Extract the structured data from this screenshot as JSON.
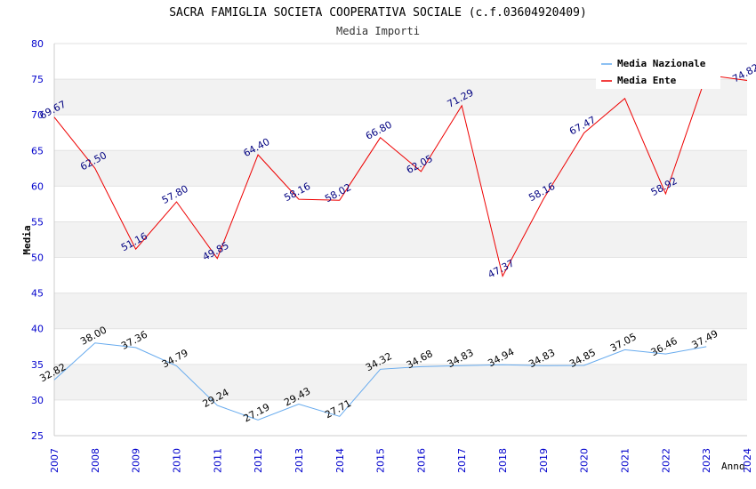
{
  "chart_data": {
    "type": "line",
    "title": "SACRA FAMIGLIA SOCIETA COOPERATIVA SOCIALE (c.f.03604920409)",
    "subtitle": "Media Importi",
    "xlabel": "Anno",
    "ylabel": "Media",
    "ylim": [
      25,
      80
    ],
    "yticks": [
      25,
      30,
      35,
      40,
      45,
      50,
      55,
      60,
      65,
      70,
      75,
      80
    ],
    "x": [
      "2007",
      "2008",
      "2009",
      "2010",
      "2011",
      "2012",
      "2013",
      "2014",
      "2015",
      "2016",
      "2017",
      "2018",
      "2019",
      "2020",
      "2021",
      "2022",
      "2023",
      "2024"
    ],
    "legend_position": "top-right",
    "series": [
      {
        "name": "Media Nazionale",
        "color": "#66aaee",
        "label_color": "#000000",
        "values": [
          32.82,
          38.0,
          37.36,
          34.79,
          29.24,
          27.19,
          29.43,
          27.71,
          34.32,
          34.68,
          34.83,
          34.94,
          34.83,
          34.85,
          37.05,
          36.46,
          37.49,
          null
        ],
        "labels": [
          "32.82",
          "38.00",
          "37.36",
          "34.79",
          "29.24",
          "27.19",
          "29.43",
          "27.71",
          "34.32",
          "34.68",
          "34.83",
          "34.94",
          "34.83",
          "34.85",
          "37.05",
          "36.46",
          "37.49",
          null
        ]
      },
      {
        "name": "Media Ente",
        "color": "#ee0000",
        "label_color": "#000080",
        "values": [
          69.67,
          62.5,
          51.16,
          57.8,
          49.85,
          64.4,
          58.16,
          58.02,
          66.8,
          62.05,
          71.29,
          47.37,
          58.16,
          67.47,
          72.3,
          58.92,
          75.6,
          74.82
        ],
        "labels": [
          "69.67",
          "62.50",
          "51.16",
          "57.80",
          "49.85",
          "64.40",
          "58.16",
          "58.02",
          "66.80",
          "62.05",
          "71.29",
          "47.37",
          "58.16",
          "67.47",
          null,
          "58.92",
          null,
          "74.82"
        ]
      }
    ]
  }
}
